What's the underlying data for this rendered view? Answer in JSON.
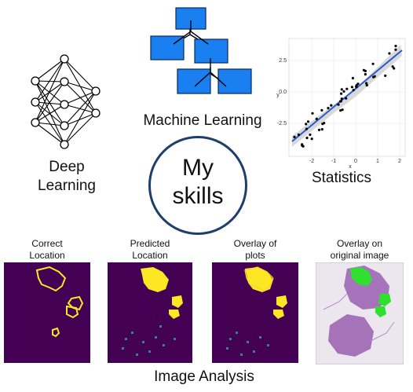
{
  "center": {
    "line1": "My",
    "line2": "skills"
  },
  "deep_learning": {
    "label_line1": "Deep",
    "label_line2": "Learning"
  },
  "machine_learning": {
    "label": "Machine Learning"
  },
  "statistics": {
    "label": "Statistics",
    "xlabel": "x",
    "ylabel": "y",
    "xticks": [
      "-2",
      "-1",
      "0",
      "1",
      "2"
    ],
    "yticks": [
      "2.5",
      "0.0",
      "-2.5"
    ]
  },
  "image_analysis": {
    "label": "Image Analysis",
    "panels": [
      {
        "title": "Correct\nLocation"
      },
      {
        "title": "Predicted\nLocation"
      },
      {
        "title": "Overlay of\nplots"
      },
      {
        "title": "Overlay on\noriginal image"
      }
    ]
  },
  "colors": {
    "tree_box": "#1a7ff0",
    "circle_border": "#1f3f6b",
    "heatmap_bg": "#440154",
    "heatmap_hot": "#fde725",
    "regression_line": "#2b5ccf"
  }
}
